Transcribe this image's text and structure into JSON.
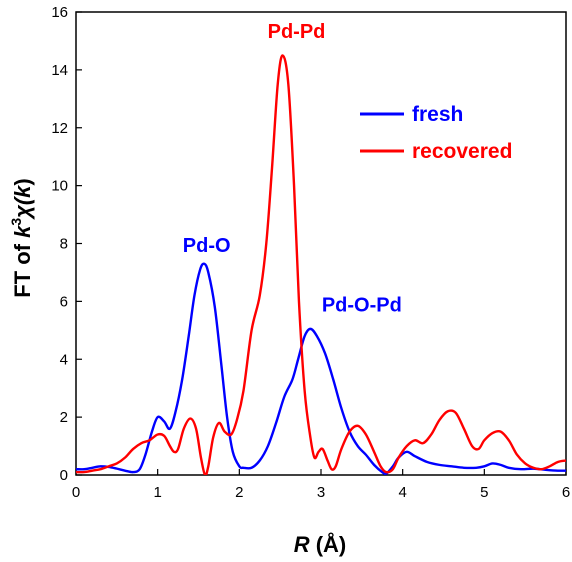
{
  "chart_data": {
    "type": "line",
    "title": "",
    "xlabel_italic": "R",
    "xlabel_rest": " (Å)",
    "ylabel_prefix": "FT of ",
    "ylabel_k": "k",
    "ylabel_exp": "3",
    "ylabel_chi": "χ(",
    "ylabel_k2": "k",
    "ylabel_close": ")",
    "xlim": [
      0,
      6
    ],
    "ylim": [
      0,
      16
    ],
    "xticks": [
      "0",
      "1",
      "2",
      "3",
      "4",
      "5",
      "6"
    ],
    "yticks": [
      "0",
      "2",
      "4",
      "6",
      "8",
      "10",
      "12",
      "14",
      "16"
    ],
    "grid": false,
    "legend_position": "top-right",
    "series": [
      {
        "name": "fresh",
        "color": "#0000ff",
        "points": [
          [
            0,
            0.2
          ],
          [
            0.1,
            0.2
          ],
          [
            0.2,
            0.25
          ],
          [
            0.3,
            0.3
          ],
          [
            0.4,
            0.28
          ],
          [
            0.5,
            0.22
          ],
          [
            0.6,
            0.15
          ],
          [
            0.7,
            0.1
          ],
          [
            0.78,
            0.2
          ],
          [
            0.85,
            0.7
          ],
          [
            0.93,
            1.5
          ],
          [
            1.0,
            2.0
          ],
          [
            1.08,
            1.85
          ],
          [
            1.15,
            1.6
          ],
          [
            1.22,
            2.2
          ],
          [
            1.3,
            3.3
          ],
          [
            1.38,
            4.8
          ],
          [
            1.45,
            6.2
          ],
          [
            1.52,
            7.1
          ],
          [
            1.57,
            7.3
          ],
          [
            1.62,
            7.0
          ],
          [
            1.7,
            5.8
          ],
          [
            1.78,
            3.8
          ],
          [
            1.85,
            2.0
          ],
          [
            1.92,
            0.8
          ],
          [
            2.0,
            0.3
          ],
          [
            2.05,
            0.25
          ],
          [
            2.15,
            0.25
          ],
          [
            2.25,
            0.5
          ],
          [
            2.35,
            1.0
          ],
          [
            2.45,
            1.8
          ],
          [
            2.55,
            2.7
          ],
          [
            2.65,
            3.3
          ],
          [
            2.72,
            4.0
          ],
          [
            2.8,
            4.8
          ],
          [
            2.87,
            5.05
          ],
          [
            2.95,
            4.8
          ],
          [
            3.05,
            4.2
          ],
          [
            3.15,
            3.3
          ],
          [
            3.25,
            2.3
          ],
          [
            3.35,
            1.5
          ],
          [
            3.45,
            1.0
          ],
          [
            3.55,
            0.7
          ],
          [
            3.65,
            0.35
          ],
          [
            3.75,
            0.1
          ],
          [
            3.8,
            0.05
          ],
          [
            3.88,
            0.3
          ],
          [
            3.95,
            0.6
          ],
          [
            4.05,
            0.8
          ],
          [
            4.15,
            0.65
          ],
          [
            4.3,
            0.45
          ],
          [
            4.45,
            0.35
          ],
          [
            4.6,
            0.3
          ],
          [
            4.75,
            0.25
          ],
          [
            4.9,
            0.25
          ],
          [
            5.0,
            0.3
          ],
          [
            5.1,
            0.4
          ],
          [
            5.2,
            0.35
          ],
          [
            5.3,
            0.25
          ],
          [
            5.45,
            0.2
          ],
          [
            5.6,
            0.22
          ],
          [
            5.75,
            0.18
          ],
          [
            5.9,
            0.15
          ],
          [
            6.0,
            0.15
          ]
        ]
      },
      {
        "name": "recovered",
        "color": "#ff0000",
        "points": [
          [
            0,
            0.1
          ],
          [
            0.1,
            0.1
          ],
          [
            0.2,
            0.15
          ],
          [
            0.3,
            0.2
          ],
          [
            0.4,
            0.3
          ],
          [
            0.5,
            0.4
          ],
          [
            0.6,
            0.6
          ],
          [
            0.7,
            0.9
          ],
          [
            0.8,
            1.1
          ],
          [
            0.9,
            1.2
          ],
          [
            1.0,
            1.4
          ],
          [
            1.08,
            1.35
          ],
          [
            1.15,
            1.0
          ],
          [
            1.2,
            0.8
          ],
          [
            1.25,
            0.9
          ],
          [
            1.32,
            1.6
          ],
          [
            1.4,
            1.95
          ],
          [
            1.47,
            1.6
          ],
          [
            1.53,
            0.6
          ],
          [
            1.58,
            0.0
          ],
          [
            1.62,
            0.3
          ],
          [
            1.68,
            1.3
          ],
          [
            1.75,
            1.8
          ],
          [
            1.82,
            1.5
          ],
          [
            1.9,
            1.4
          ],
          [
            1.97,
            1.9
          ],
          [
            2.05,
            2.9
          ],
          [
            2.15,
            5.0
          ],
          [
            2.25,
            6.2
          ],
          [
            2.33,
            8.0
          ],
          [
            2.4,
            10.6
          ],
          [
            2.47,
            13.5
          ],
          [
            2.53,
            14.5
          ],
          [
            2.6,
            13.5
          ],
          [
            2.67,
            10.0
          ],
          [
            2.73,
            6.0
          ],
          [
            2.8,
            2.9
          ],
          [
            2.87,
            1.3
          ],
          [
            2.92,
            0.6
          ],
          [
            2.97,
            0.8
          ],
          [
            3.02,
            0.9
          ],
          [
            3.08,
            0.5
          ],
          [
            3.13,
            0.2
          ],
          [
            3.18,
            0.3
          ],
          [
            3.25,
            0.9
          ],
          [
            3.35,
            1.5
          ],
          [
            3.45,
            1.7
          ],
          [
            3.55,
            1.4
          ],
          [
            3.65,
            0.8
          ],
          [
            3.73,
            0.3
          ],
          [
            3.8,
            0.1
          ],
          [
            3.88,
            0.2
          ],
          [
            3.95,
            0.6
          ],
          [
            4.05,
            1.0
          ],
          [
            4.15,
            1.2
          ],
          [
            4.25,
            1.1
          ],
          [
            4.35,
            1.4
          ],
          [
            4.45,
            1.9
          ],
          [
            4.55,
            2.2
          ],
          [
            4.65,
            2.15
          ],
          [
            4.75,
            1.6
          ],
          [
            4.85,
            1.0
          ],
          [
            4.93,
            0.9
          ],
          [
            5.0,
            1.2
          ],
          [
            5.1,
            1.45
          ],
          [
            5.2,
            1.5
          ],
          [
            5.3,
            1.2
          ],
          [
            5.4,
            0.7
          ],
          [
            5.5,
            0.4
          ],
          [
            5.6,
            0.25
          ],
          [
            5.7,
            0.2
          ],
          [
            5.8,
            0.3
          ],
          [
            5.9,
            0.45
          ],
          [
            6.0,
            0.5
          ]
        ]
      }
    ],
    "annotations": [
      {
        "text": "Pd-Pd",
        "x": 2.7,
        "y": 15.1,
        "color": "#ff0000"
      },
      {
        "text": "Pd-O",
        "x": 1.6,
        "y": 7.7,
        "color": "#0000ff"
      },
      {
        "text": "Pd-O-Pd",
        "x": 3.5,
        "y": 5.65,
        "color": "#0000ff"
      }
    ]
  }
}
